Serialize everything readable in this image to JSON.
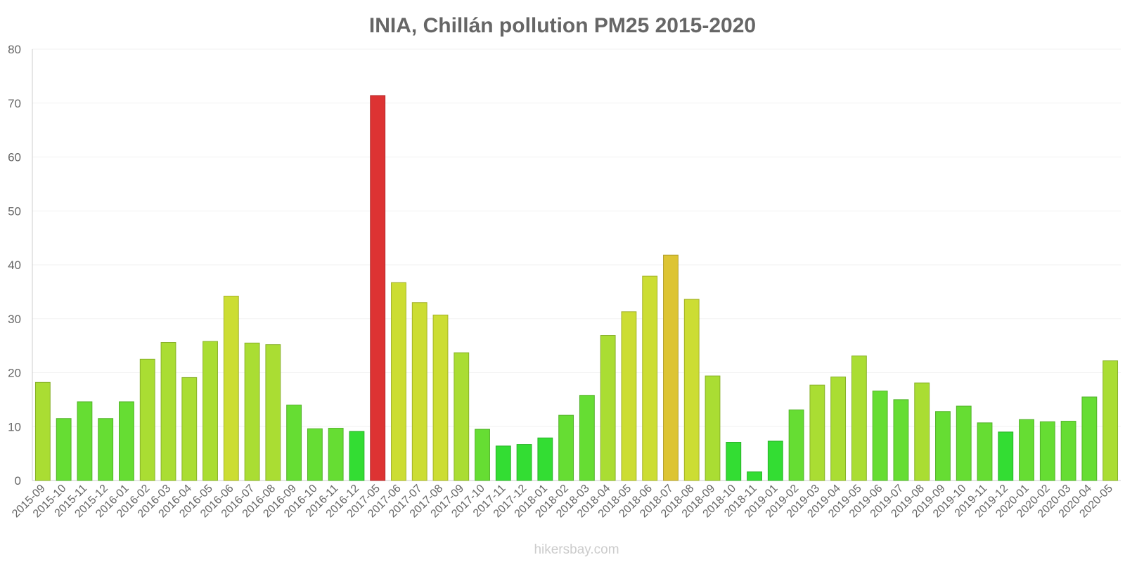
{
  "chart_data": {
    "type": "bar",
    "title": "INIA, Chillán pollution PM25 2015-2020",
    "xlabel": "",
    "ylabel": "",
    "ylim": [
      0,
      80
    ],
    "yticks": [
      0,
      10,
      20,
      30,
      40,
      50,
      60,
      70,
      80
    ],
    "grid": true,
    "categories": [
      "2015-09",
      "2015-10",
      "2015-11",
      "2015-12",
      "2016-01",
      "2016-02",
      "2016-03",
      "2016-04",
      "2016-05",
      "2016-06",
      "2016-07",
      "2016-08",
      "2016-09",
      "2016-10",
      "2016-11",
      "2016-12",
      "2017-05",
      "2017-06",
      "2017-07",
      "2017-08",
      "2017-09",
      "2017-10",
      "2017-11",
      "2017-12",
      "2018-01",
      "2018-02",
      "2018-03",
      "2018-04",
      "2018-05",
      "2018-06",
      "2018-07",
      "2018-08",
      "2018-09",
      "2018-10",
      "2018-11",
      "2019-01",
      "2019-02",
      "2019-03",
      "2019-04",
      "2019-05",
      "2019-06",
      "2019-07",
      "2019-08",
      "2019-09",
      "2019-10",
      "2019-11",
      "2019-12",
      "2020-01",
      "2020-02",
      "2020-03",
      "2020-04",
      "2020-05"
    ],
    "values": [
      18.2,
      11.5,
      14.6,
      11.5,
      14.6,
      22.5,
      25.6,
      19.1,
      25.8,
      34.2,
      25.5,
      25.2,
      14.0,
      9.6,
      9.7,
      9.1,
      71.4,
      36.7,
      33.0,
      30.7,
      23.7,
      9.5,
      6.4,
      6.7,
      7.9,
      12.1,
      15.8,
      26.9,
      31.3,
      37.9,
      41.8,
      33.6,
      19.4,
      7.1,
      1.6,
      7.3,
      13.1,
      17.7,
      19.2,
      23.1,
      16.6,
      15.0,
      18.1,
      12.8,
      13.8,
      10.7,
      9.0,
      11.3,
      10.9,
      11.0,
      15.5,
      22.2
    ],
    "colors": {
      "very_low": "#33dd33",
      "low": "#66dd33",
      "moderate": "#aadd33",
      "elevated": "#ccdd33",
      "high": "#ddc433",
      "very_high": "#dd3333"
    }
  },
  "footer": {
    "credit": "hikersbay.com"
  }
}
